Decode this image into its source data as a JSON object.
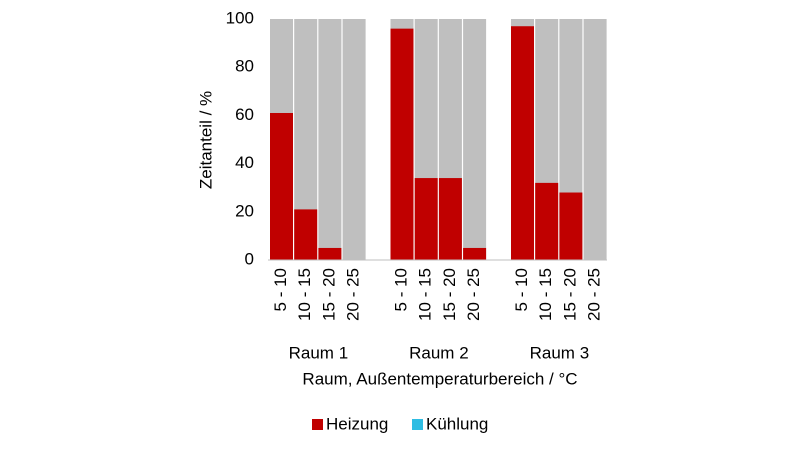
{
  "chart_data": {
    "type": "stacked-bar",
    "y_label": "Zeitanteil / %",
    "x_label": "Raum, Außentemperaturbereich / °C",
    "groups": [
      "Raum 1",
      "Raum 2",
      "Raum 3"
    ],
    "categories": [
      "5 - 10",
      "10 - 15",
      "15 - 20",
      "20 - 25",
      "5 - 10",
      "10 - 15",
      "15 - 20",
      "20 - 25",
      "5 - 10",
      "10 - 15",
      "15 - 20",
      "20 - 25"
    ],
    "series": [
      {
        "name": "Heizung",
        "color": "#c00000",
        "values": [
          61,
          21,
          5,
          0,
          96,
          34,
          34,
          5,
          97,
          32,
          28,
          0
        ]
      },
      {
        "name": "Kühlung",
        "color": "#2ebde3",
        "values": [
          0,
          0,
          0,
          0,
          0,
          0,
          0,
          0,
          0,
          0,
          0,
          0
        ]
      }
    ],
    "background_color": "#bfbfbf",
    "ylim": [
      0,
      100
    ],
    "yticks": [
      0,
      20,
      40,
      60,
      80,
      100
    ]
  }
}
